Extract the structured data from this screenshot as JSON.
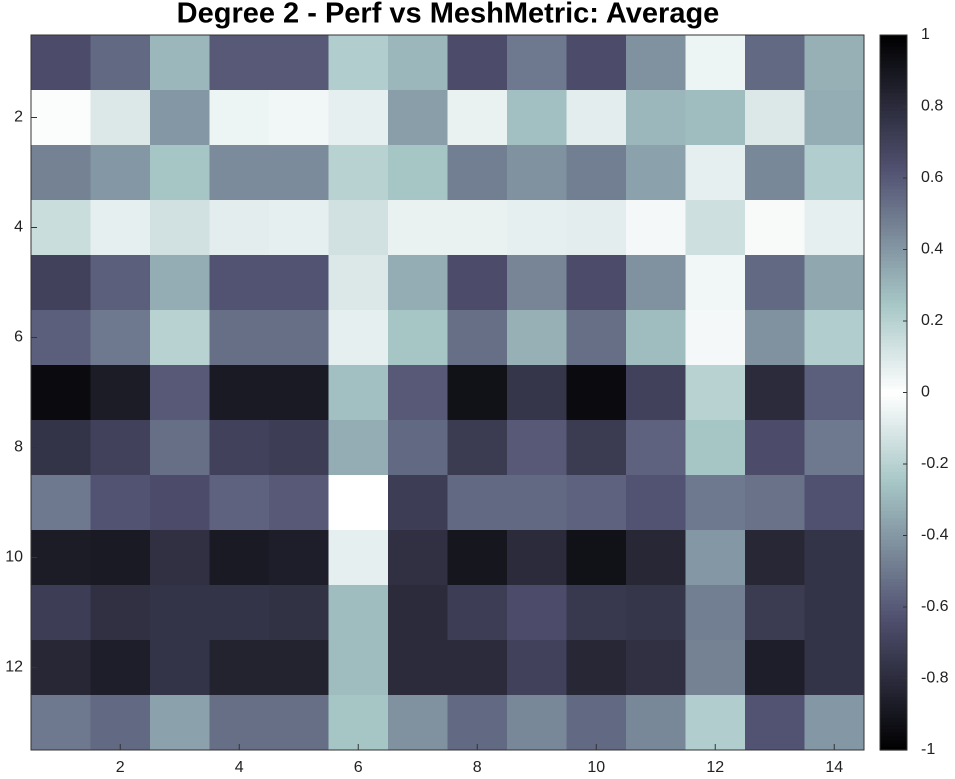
{
  "chart_data": {
    "type": "heatmap",
    "title": "Degree 2 - Perf vs MeshMetric: Average",
    "xlim": [
      0.5,
      14.5
    ],
    "xticks": [
      2,
      4,
      6,
      8,
      10,
      12,
      14
    ],
    "ylim": [
      0.5,
      13.5
    ],
    "yticks": [
      2,
      4,
      6,
      8,
      10,
      12
    ],
    "clim": [
      -1,
      1
    ],
    "cticks": [
      -1,
      -0.8,
      -0.6,
      -0.4,
      -0.2,
      0,
      0.2,
      0.4,
      0.6,
      0.8,
      1
    ],
    "z": [
      [
        0.65,
        0.55,
        0.3,
        0.6,
        0.6,
        0.22,
        0.3,
        0.65,
        0.5,
        0.65,
        0.42,
        0.05,
        0.55,
        0.32
      ],
      [
        0.01,
        0.1,
        0.4,
        0.05,
        0.04,
        0.07,
        0.38,
        0.06,
        0.27,
        0.08,
        0.3,
        0.28,
        0.1,
        0.33
      ],
      [
        0.47,
        0.4,
        0.25,
        0.44,
        0.44,
        0.2,
        0.25,
        0.48,
        0.42,
        0.48,
        0.37,
        0.07,
        0.45,
        0.22
      ],
      [
        0.15,
        0.07,
        0.13,
        0.08,
        0.07,
        0.13,
        0.06,
        0.06,
        0.07,
        0.08,
        0.03,
        0.14,
        0.02,
        0.07
      ],
      [
        0.7,
        0.58,
        0.33,
        0.62,
        0.62,
        0.1,
        0.33,
        0.65,
        0.46,
        0.65,
        0.42,
        0.04,
        0.55,
        0.35
      ],
      [
        0.58,
        0.5,
        0.2,
        0.53,
        0.53,
        0.07,
        0.25,
        0.53,
        0.32,
        0.53,
        0.28,
        0.03,
        0.42,
        0.22
      ],
      [
        0.95,
        0.87,
        0.6,
        0.88,
        0.88,
        0.27,
        0.6,
        0.92,
        0.75,
        0.95,
        0.7,
        0.2,
        0.8,
        0.58
      ],
      [
        0.76,
        0.7,
        0.53,
        0.7,
        0.72,
        0.33,
        0.55,
        0.73,
        0.6,
        0.73,
        0.57,
        0.25,
        0.65,
        0.5
      ],
      [
        0.5,
        0.62,
        0.65,
        0.57,
        0.6,
        0.0,
        0.72,
        0.55,
        0.55,
        0.57,
        0.62,
        0.5,
        0.52,
        0.63
      ],
      [
        0.87,
        0.88,
        0.78,
        0.88,
        0.86,
        0.07,
        0.78,
        0.9,
        0.8,
        0.92,
        0.82,
        0.4,
        0.82,
        0.76
      ],
      [
        0.72,
        0.78,
        0.76,
        0.76,
        0.77,
        0.28,
        0.8,
        0.72,
        0.65,
        0.74,
        0.75,
        0.48,
        0.73,
        0.76
      ],
      [
        0.82,
        0.86,
        0.76,
        0.84,
        0.84,
        0.28,
        0.8,
        0.8,
        0.7,
        0.82,
        0.78,
        0.47,
        0.86,
        0.76
      ],
      [
        0.5,
        0.55,
        0.37,
        0.53,
        0.53,
        0.25,
        0.42,
        0.55,
        0.45,
        0.55,
        0.45,
        0.22,
        0.62,
        0.4
      ]
    ]
  }
}
